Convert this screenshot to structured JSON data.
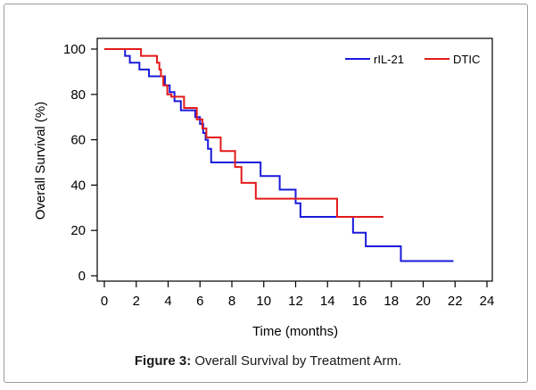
{
  "figure": {
    "label": "Figure 3:",
    "caption": "Overall Survival by Treatment Arm."
  },
  "chart_data": {
    "type": "line",
    "step": true,
    "xlabel": "Time (months)",
    "ylabel": "Overall Survival (%)",
    "xlim": [
      0,
      24
    ],
    "ylim": [
      0,
      100
    ],
    "xticks": [
      0,
      2,
      4,
      6,
      8,
      10,
      12,
      14,
      16,
      18,
      20,
      22,
      24
    ],
    "yticks": [
      0,
      20,
      40,
      60,
      80,
      100
    ],
    "grid": false,
    "legend_position": "top-right",
    "series": [
      {
        "name": "rIL-21",
        "color": "#1a1adc",
        "x": [
          0,
          1.3,
          1.6,
          2.2,
          2.8,
          3.8,
          4.1,
          4.4,
          4.8,
          5.7,
          6.0,
          6.2,
          6.35,
          6.5,
          6.7,
          9.8,
          11.0,
          12.0,
          12.3,
          15.6,
          16.4,
          18.6,
          21.9
        ],
        "y": [
          100,
          97,
          94,
          91,
          88,
          84,
          81,
          77,
          73,
          70,
          67,
          63,
          60,
          56,
          50,
          44,
          38,
          32,
          26,
          19,
          13,
          6.5,
          6.5
        ]
      },
      {
        "name": "DTIC",
        "color": "#e31a1a",
        "x": [
          0,
          2.3,
          3.3,
          3.45,
          3.55,
          3.7,
          3.95,
          4.2,
          5.0,
          5.8,
          6.15,
          6.4,
          7.3,
          8.2,
          8.6,
          9.5,
          14.6,
          17.5
        ],
        "y": [
          100,
          97,
          94,
          91,
          88,
          84,
          80,
          79,
          74,
          69,
          65,
          61,
          55,
          48,
          41,
          34,
          26,
          26
        ]
      }
    ]
  }
}
